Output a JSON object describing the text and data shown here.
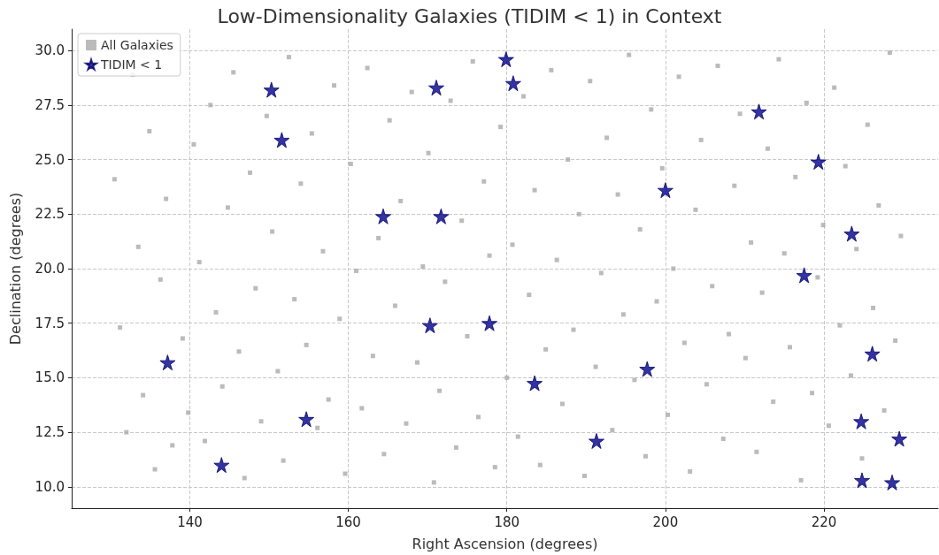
{
  "chart_data": {
    "type": "scatter",
    "title": "Low-Dimensionality Galaxies (TIDIM < 1) in Context",
    "xlabel": "Right Ascension (degrees)",
    "ylabel": "Declination (degrees)",
    "xlim": [
      125.1,
      234.4
    ],
    "xticks": [
      140,
      160,
      180,
      200,
      220
    ],
    "ylim": [
      9.02,
      30.98
    ],
    "yticks": [
      {
        "value": 10,
        "label": "10.0"
      },
      12.5,
      {
        "value": 15,
        "label": "15.0"
      },
      17.5,
      {
        "value": 20,
        "label": "20.0"
      },
      22.5,
      {
        "value": 25,
        "label": "25.0"
      },
      27.5,
      {
        "value": 30,
        "label": "30.0"
      }
    ],
    "grid": true,
    "legend": "top left",
    "series": [
      {
        "name": "All Galaxies",
        "color": "#aaaaaa",
        "marker": "square",
        "x": [
          130.5,
          131.2,
          132.0,
          132.8,
          133.5,
          134.1,
          134.9,
          135.6,
          136.3,
          137.0,
          137.8,
          138.5,
          139.1,
          139.8,
          140.5,
          141.2,
          141.9,
          142.6,
          143.3,
          144.1,
          144.8,
          145.5,
          146.2,
          146.9,
          147.6,
          148.3,
          149.0,
          149.7,
          150.4,
          151.1,
          151.8,
          152.5,
          153.2,
          154.0,
          154.7,
          155.4,
          156.1,
          156.8,
          157.5,
          158.2,
          158.9,
          159.6,
          160.3,
          161.0,
          161.7,
          162.4,
          163.1,
          163.8,
          164.5,
          165.2,
          165.9,
          166.6,
          167.3,
          168.0,
          168.7,
          169.4,
          170.1,
          170.8,
          171.5,
          172.2,
          172.9,
          173.6,
          174.3,
          175.0,
          175.7,
          176.4,
          177.1,
          177.8,
          178.5,
          179.2,
          180.0,
          180.7,
          181.4,
          182.1,
          182.8,
          183.5,
          184.2,
          184.9,
          185.6,
          186.3,
          187.0,
          187.7,
          188.4,
          189.1,
          189.8,
          190.5,
          191.2,
          191.9,
          192.6,
          193.3,
          194.0,
          194.7,
          195.4,
          196.1,
          196.8,
          197.5,
          198.2,
          198.9,
          199.6,
          200.3,
          201.0,
          201.7,
          202.4,
          203.1,
          203.8,
          204.5,
          205.2,
          205.9,
          206.6,
          207.3,
          208.0,
          208.7,
          209.4,
          210.1,
          210.8,
          211.5,
          212.2,
          212.9,
          213.6,
          214.3,
          215.0,
          215.7,
          216.4,
          217.1,
          217.8,
          218.5,
          219.2,
          219.9,
          220.6,
          221.3,
          222.0,
          222.7,
          223.4,
          224.1,
          224.8,
          225.5,
          226.2,
          226.9,
          227.6,
          228.3,
          229.0,
          229.7
        ],
        "values": [
          24.1,
          17.3,
          12.5,
          28.9,
          21.0,
          14.2,
          26.3,
          10.8,
          19.5,
          23.2,
          11.9,
          null,
          16.8,
          13.4,
          25.7,
          20.3,
          12.1,
          27.5,
          18.0,
          14.6,
          22.8,
          29.0,
          16.2,
          10.4,
          24.4,
          19.1,
          13.0,
          27.0,
          21.7,
          15.3,
          11.2,
          29.7,
          18.6,
          23.9,
          16.5,
          26.2,
          12.7,
          20.8,
          14.0,
          28.4,
          17.7,
          10.6,
          24.8,
          19.9,
          13.6,
          29.2,
          16.0,
          21.4,
          11.5,
          26.8,
          18.3,
          23.1,
          12.9,
          28.1,
          15.7,
          20.1,
          25.3,
          10.2,
          14.4,
          19.4,
          27.7,
          11.8,
          22.2,
          16.9,
          29.5,
          13.2,
          24.0,
          20.6,
          10.9,
          26.5,
          15.0,
          21.1,
          12.3,
          27.9,
          18.8,
          23.6,
          11.0,
          16.3,
          29.1,
          20.4,
          13.8,
          25.0,
          17.2,
          22.5,
          10.5,
          28.6,
          15.5,
          19.8,
          26.0,
          12.6,
          23.4,
          17.9,
          29.8,
          14.9,
          21.8,
          11.4,
          27.3,
          18.5,
          24.6,
          13.3,
          20.0,
          28.8,
          16.6,
          10.7,
          22.7,
          25.9,
          14.7,
          19.2,
          29.3,
          12.2,
          17.0,
          23.8,
          27.1,
          15.9,
          21.2,
          11.6,
          18.9,
          25.5,
          13.9,
          29.6,
          20.7,
          16.4,
          24.2,
          10.3,
          27.6,
          14.3,
          19.6,
          22.0,
          12.8,
          28.3,
          17.4,
          24.7,
          15.1,
          20.9,
          11.3,
          26.6,
          18.2,
          22.9,
          13.5,
          29.9,
          16.7,
          21.5
        ]
      },
      {
        "name": "TIDIM < 1",
        "color": "#00008b",
        "marker": "star",
        "x": [
          137.2,
          144.0,
          150.3,
          151.6,
          154.7,
          164.4,
          171.1,
          171.7,
          179.9,
          180.8,
          170.3,
          177.8,
          183.5,
          191.3,
          200.0,
          197.7,
          211.8,
          219.3,
          223.5,
          217.5,
          226.1,
          224.7,
          229.5,
          224.8,
          228.6
        ],
        "values": [
          15.7,
          11.0,
          28.2,
          25.9,
          13.1,
          22.4,
          28.3,
          22.4,
          29.6,
          28.5,
          17.4,
          17.5,
          14.75,
          12.1,
          23.6,
          15.4,
          27.2,
          24.9,
          21.6,
          19.7,
          16.1,
          13.0,
          12.2,
          10.3,
          10.2
        ]
      }
    ]
  }
}
